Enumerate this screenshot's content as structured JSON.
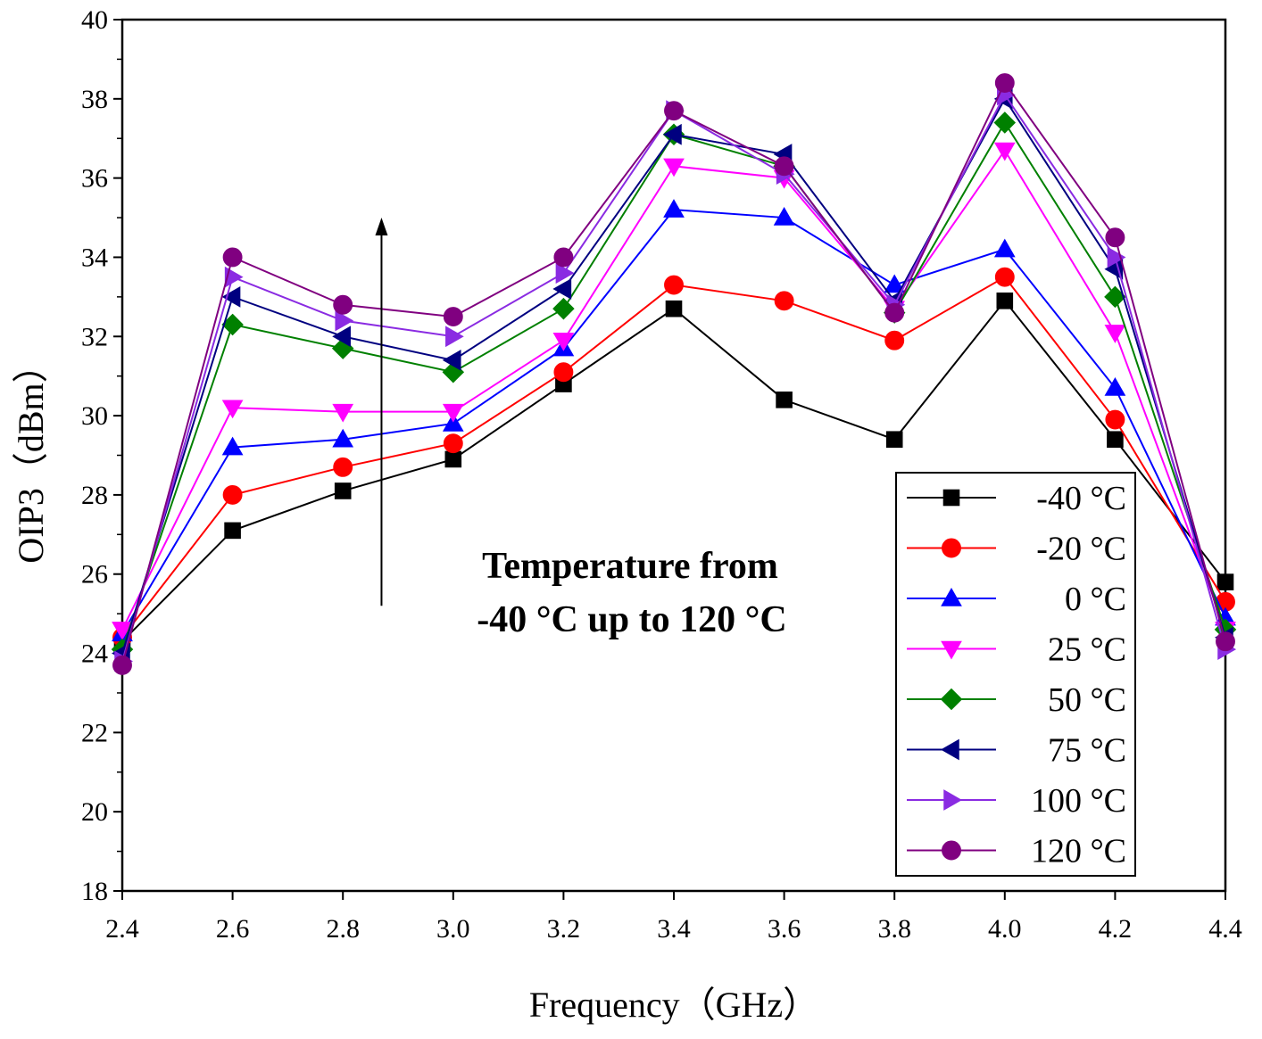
{
  "chart_data": {
    "type": "line",
    "title": "",
    "xlabel": "Frequency（GHz）",
    "ylabel": "OIP3（dBm）",
    "xlim": [
      2.4,
      4.4
    ],
    "ylim": [
      18,
      40
    ],
    "x_ticks": [
      "2.4",
      "2.6",
      "2.8",
      "3.0",
      "3.2",
      "3.4",
      "3.6",
      "3.8",
      "4.0",
      "4.2",
      "4.4"
    ],
    "y_ticks": [
      "18",
      "20",
      "22",
      "24",
      "26",
      "28",
      "30",
      "32",
      "34",
      "36",
      "38",
      "40"
    ],
    "grid": false,
    "legend_position": "bottom-right",
    "annotation": {
      "lines": [
        "Temperature from",
        "-40 °C up to 120 °C"
      ],
      "arrow": {
        "x": 2.87,
        "from_y": 25.2,
        "to_y": 35.0
      }
    },
    "x": [
      2.4,
      2.6,
      2.8,
      3.0,
      3.2,
      3.4,
      3.6,
      3.8,
      4.0,
      4.2,
      4.4
    ],
    "series": [
      {
        "name": "-40 °C",
        "color": "#000000",
        "marker": "square",
        "values": [
          24.3,
          27.1,
          28.1,
          28.9,
          30.8,
          32.7,
          30.4,
          29.4,
          32.9,
          29.4,
          25.8
        ]
      },
      {
        "name": "-20 °C",
        "color": "#ff0000",
        "marker": "circle",
        "values": [
          24.4,
          28.0,
          28.7,
          29.3,
          31.1,
          33.3,
          32.9,
          31.9,
          33.5,
          29.9,
          25.3
        ]
      },
      {
        "name": "0 °C",
        "color": "#0000ff",
        "marker": "triangle-up",
        "values": [
          24.5,
          29.2,
          29.4,
          29.8,
          31.7,
          35.2,
          35.0,
          33.3,
          34.2,
          30.7,
          24.9
        ]
      },
      {
        "name": "25 °C",
        "color": "#ff00ff",
        "marker": "triangle-down",
        "values": [
          24.6,
          30.2,
          30.1,
          30.1,
          31.9,
          36.3,
          36.0,
          32.7,
          36.7,
          32.1,
          24.6
        ]
      },
      {
        "name": "50 °C",
        "color": "#008000",
        "marker": "diamond",
        "values": [
          24.1,
          32.3,
          31.7,
          31.1,
          32.7,
          37.1,
          36.3,
          32.6,
          37.4,
          33.0,
          24.6
        ]
      },
      {
        "name": "75 °C",
        "color": "#000080",
        "marker": "triangle-left",
        "values": [
          24.0,
          33.0,
          32.0,
          31.4,
          33.2,
          37.1,
          36.6,
          32.9,
          38.0,
          33.7,
          24.4
        ]
      },
      {
        "name": "100 °C",
        "color": "#8a2be2",
        "marker": "triangle-right",
        "values": [
          23.8,
          33.5,
          32.4,
          32.0,
          33.6,
          37.7,
          36.1,
          32.8,
          38.1,
          34.0,
          24.1
        ]
      },
      {
        "name": "120 °C",
        "color": "#800080",
        "marker": "circle",
        "values": [
          23.7,
          34.0,
          32.8,
          32.5,
          34.0,
          37.7,
          36.3,
          32.6,
          38.4,
          34.5,
          24.3
        ]
      }
    ]
  }
}
